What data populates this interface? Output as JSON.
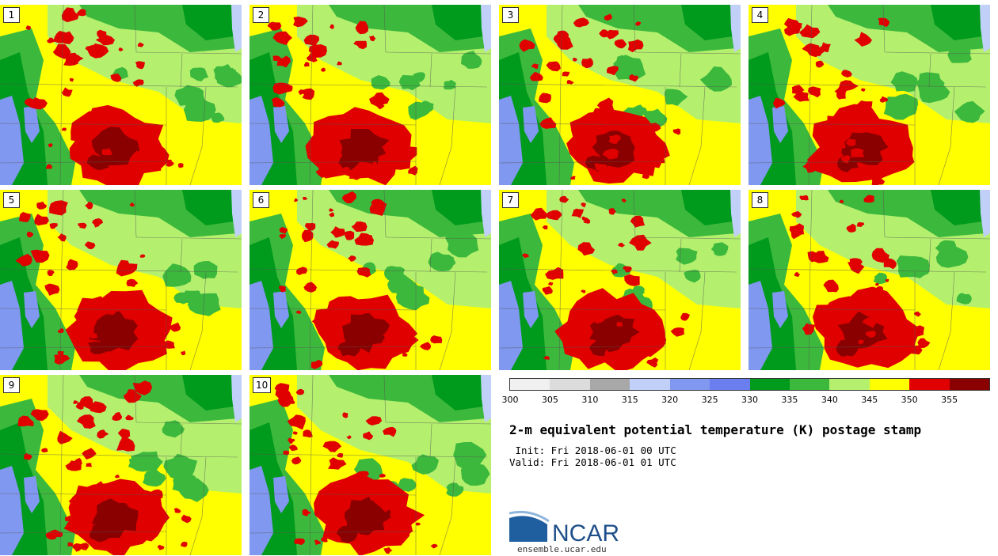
{
  "panels": [
    {
      "label": "1"
    },
    {
      "label": "2"
    },
    {
      "label": "3"
    },
    {
      "label": "4"
    },
    {
      "label": "5"
    },
    {
      "label": "6"
    },
    {
      "label": "7"
    },
    {
      "label": "8"
    },
    {
      "label": "9"
    },
    {
      "label": "10"
    }
  ],
  "colorbar": {
    "colors": [
      "#f0f0f0",
      "#dcdcdc",
      "#a8a8a8",
      "#c0d0f8",
      "#8098f0",
      "#6a7ef0",
      "#009a1c",
      "#3cb83c",
      "#b4f06e",
      "#ffff00",
      "#e00000",
      "#8a0000"
    ],
    "ticks": [
      "300",
      "305",
      "310",
      "315",
      "320",
      "325",
      "330",
      "335",
      "340",
      "345",
      "350",
      "355"
    ]
  },
  "title": "2-m equivalent potential temperature (K) postage stamp",
  "init": " Init: Fri 2018-06-01 00 UTC",
  "valid": "Valid: Fri 2018-06-01 01 UTC",
  "logo": {
    "text": "NCAR",
    "url": "ensemble.ucar.edu"
  }
}
